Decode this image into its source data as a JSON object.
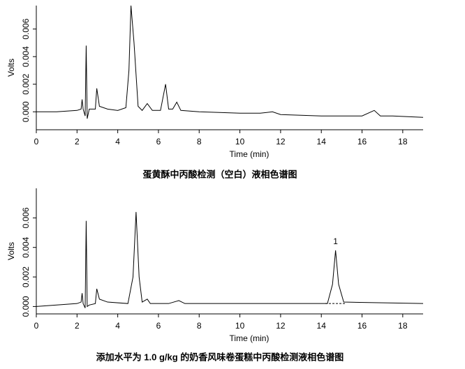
{
  "chart_data": [
    {
      "type": "line",
      "title": "蛋黄酥中丙酸检测（空白）液相色谱图",
      "xlabel": "Time (min)",
      "ylabel": "Volts",
      "color": "#000000",
      "x": [
        0,
        1,
        2,
        2.2,
        2.25,
        2.3,
        2.4,
        2.45,
        2.5,
        2.6,
        2.9,
        2.97,
        3.1,
        3.5,
        4.0,
        4.4,
        4.55,
        4.65,
        4.8,
        5.0,
        5.2,
        5.45,
        5.7,
        6.1,
        6.35,
        6.5,
        6.7,
        6.9,
        7.1,
        8,
        10,
        11,
        11.6,
        12,
        14,
        16,
        16.6,
        16.9,
        17.5,
        19
      ],
      "values": [
        0.0,
        0.0,
        0.0001,
        0.0002,
        0.0009,
        0.0002,
        -0.0003,
        0.0048,
        -0.0005,
        0.0002,
        0.0002,
        0.0017,
        0.0004,
        0.0002,
        0.0001,
        0.0003,
        0.003,
        0.0077,
        0.005,
        0.0004,
        0.0001,
        0.0006,
        0.0001,
        0.0001,
        0.002,
        0.0002,
        0.0002,
        0.0007,
        0.0001,
        0.0,
        -0.0001,
        -0.0001,
        0.0,
        -0.0002,
        -0.0003,
        -0.0003,
        0.0001,
        -0.0003,
        -0.0003,
        -0.0004
      ],
      "xlim": [
        0,
        19
      ],
      "xticks": [
        0,
        2,
        4,
        6,
        8,
        10,
        12,
        14,
        16,
        18
      ],
      "ylim": [
        -0.0013,
        0.0077
      ],
      "yticks": [
        {
          "value": 0,
          "label": "0.000"
        },
        {
          "value": 0.002,
          "label": "0.002"
        },
        {
          "value": 0.004,
          "label": "0.004"
        },
        {
          "value": 0.006,
          "label": "0.006"
        }
      ]
    },
    {
      "type": "line",
      "title": "添加水平为 1.0 g/kg 的奶香风味卷蛋糕中丙酸检测液相色谱图",
      "xlabel": "Time (min)",
      "ylabel": "Volts",
      "color": "#000000",
      "x": [
        0,
        1,
        2,
        2.2,
        2.25,
        2.3,
        2.4,
        2.45,
        2.5,
        2.6,
        2.9,
        2.97,
        3.1,
        3.5,
        4.5,
        4.75,
        4.9,
        5.05,
        5.2,
        5.45,
        5.6,
        6.5,
        7,
        7.3,
        10,
        14.3,
        14.55,
        14.7,
        14.85,
        15.1,
        19
      ],
      "values": [
        0.0,
        0.0001,
        0.0002,
        0.0003,
        0.0009,
        0.0002,
        -0.0001,
        0.0058,
        0.0,
        0.0001,
        0.0002,
        0.0012,
        0.0005,
        0.0003,
        0.0002,
        0.002,
        0.0064,
        0.002,
        0.0003,
        0.0005,
        0.0002,
        0.0002,
        0.0004,
        0.0002,
        0.0002,
        0.0002,
        0.0015,
        0.0038,
        0.0015,
        0.0003,
        0.0002
      ],
      "xlim": [
        0,
        19
      ],
      "xticks": [
        0,
        2,
        4,
        6,
        8,
        10,
        12,
        14,
        16,
        18
      ],
      "ylim": [
        -0.0005,
        0.008
      ],
      "yticks": [
        {
          "value": 0,
          "label": "0.000"
        },
        {
          "value": 0.002,
          "label": "0.002"
        },
        {
          "value": 0.004,
          "label": "0.004"
        },
        {
          "value": 0.006,
          "label": "0.006"
        }
      ],
      "annotations": [
        {
          "text": "1",
          "x": 14.7
        }
      ]
    }
  ]
}
